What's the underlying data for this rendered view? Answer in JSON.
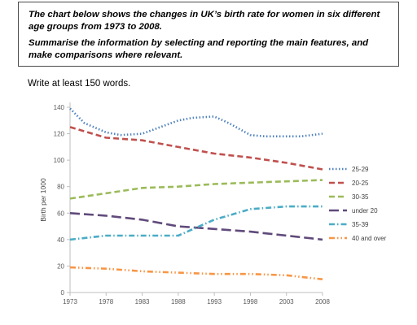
{
  "task": {
    "line1": "The chart below shows the changes in UK’s birth rate for women in six different age groups from 1973 to 2008.",
    "line2": "Summarise the information by selecting and reporting the main features, and make comparisons where relevant."
  },
  "instruction": "Write at least 150 words.",
  "chart_data": {
    "type": "line",
    "title": "",
    "xlabel": "",
    "ylabel": "Birth per 1000",
    "x_ticks": [
      "1973",
      "1978",
      "1983",
      "1988",
      "1993",
      "1998",
      "2003",
      "2008"
    ],
    "y_ticks": [
      0,
      20,
      40,
      60,
      80,
      100,
      120,
      140
    ],
    "xlim": [
      1973,
      2008
    ],
    "ylim": [
      0,
      140
    ],
    "grid": false,
    "legend_position": "right",
    "series": [
      {
        "name": "25-29",
        "color": "#4f81bd",
        "dash": "dot",
        "x": [
          1973,
          1975,
          1978,
          1980,
          1983,
          1985,
          1988,
          1990,
          1993,
          1995,
          1998,
          2000,
          2003,
          2005,
          2008
        ],
        "y": [
          139,
          128,
          121,
          119,
          120,
          124,
          130,
          132,
          133,
          128,
          119,
          118,
          118,
          118,
          120
        ]
      },
      {
        "name": "20-25",
        "color": "#c0504d",
        "dash": "dash",
        "x": [
          1973,
          1978,
          1983,
          1988,
          1993,
          1998,
          2003,
          2008
        ],
        "y": [
          125,
          117,
          115,
          110,
          105,
          102,
          98,
          93
        ]
      },
      {
        "name": "30-35",
        "color": "#9bbb59",
        "dash": "dash",
        "x": [
          1973,
          1978,
          1983,
          1988,
          1993,
          1998,
          2003,
          2008
        ],
        "y": [
          71,
          75,
          79,
          80,
          82,
          83,
          84,
          85
        ]
      },
      {
        "name": "under 20",
        "color": "#604a7b",
        "dash": "longdash",
        "x": [
          1973,
          1978,
          1983,
          1988,
          1993,
          1998,
          2003,
          2008
        ],
        "y": [
          60,
          58,
          55,
          50,
          48,
          46,
          43,
          40
        ]
      },
      {
        "name": "35-39",
        "color": "#4bacc6",
        "dash": "dashdot",
        "x": [
          1973,
          1978,
          1983,
          1988,
          1993,
          1998,
          2003,
          2008
        ],
        "y": [
          40,
          43,
          43,
          43,
          55,
          63,
          65,
          65
        ]
      },
      {
        "name": "40 and over",
        "color": "#f79646",
        "dash": "dashdotdot",
        "x": [
          1973,
          1978,
          1983,
          1988,
          1993,
          1998,
          2003,
          2008
        ],
        "y": [
          19,
          18,
          16,
          15,
          14,
          14,
          13,
          10
        ]
      }
    ]
  }
}
